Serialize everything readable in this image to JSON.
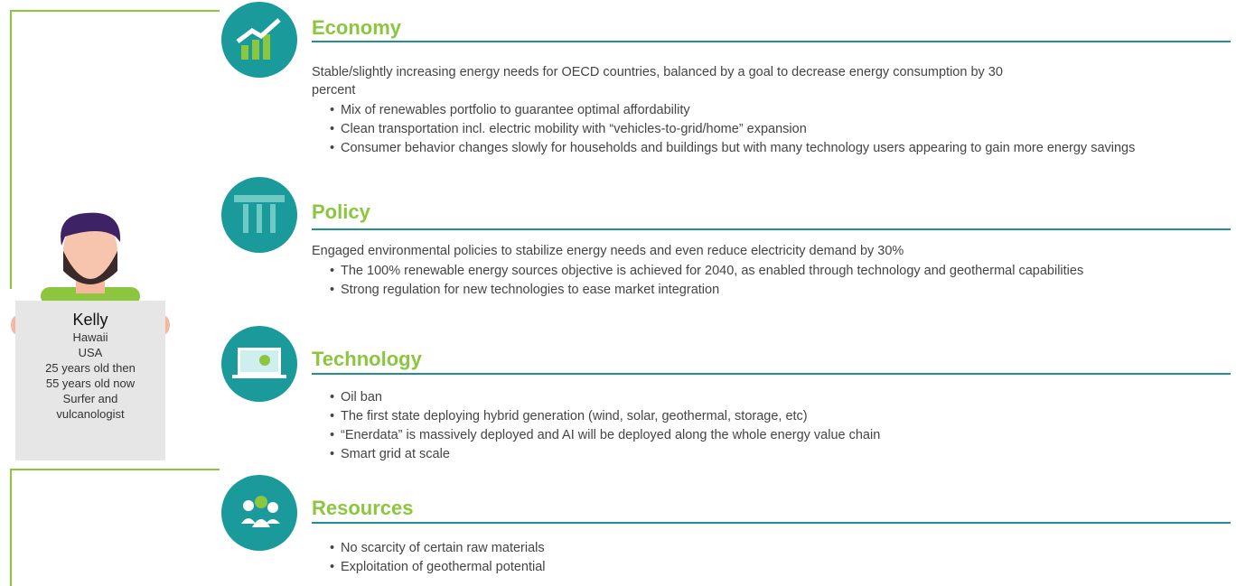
{
  "persona": {
    "name": "Kelly",
    "details": [
      "Hawaii",
      "USA",
      "25 years old then",
      "55 years old now",
      "Surfer and",
      "vulcanologist"
    ]
  },
  "sections": [
    {
      "title": "Economy",
      "intro": "Stable/slightly increasing energy needs for OECD countries, balanced by a goal to decrease energy consumption by 30 percent",
      "bullets": [
        "Mix of renewables portfolio to guarantee optimal affordability",
        "Clean transportation incl. electric mobility with “vehicles-to-grid/home” expansion",
        "Consumer behavior changes slowly for households and buildings but with many technology users appearing to gain more energy savings"
      ]
    },
    {
      "title": "Policy",
      "intro": "Engaged environmental policies to stabilize energy needs and even reduce electricity demand by 30%",
      "bullets": [
        "The 100% renewable energy sources objective is achieved for 2040, as enabled through technology and geothermal capabilities",
        "Strong regulation for new technologies to ease market integration"
      ]
    },
    {
      "title": "Technology",
      "bullets": [
        "Oil ban",
        "The first state deploying hybrid generation (wind, solar, geothermal, storage, etc)",
        "“Enerdata” is massively deployed and AI will be deployed along the whole energy value chain",
        "Smart grid at scale"
      ]
    },
    {
      "title": "Resources",
      "bullets": [
        "No scarcity of certain raw materials",
        "Exploitation of geothermal potential"
      ]
    }
  ]
}
